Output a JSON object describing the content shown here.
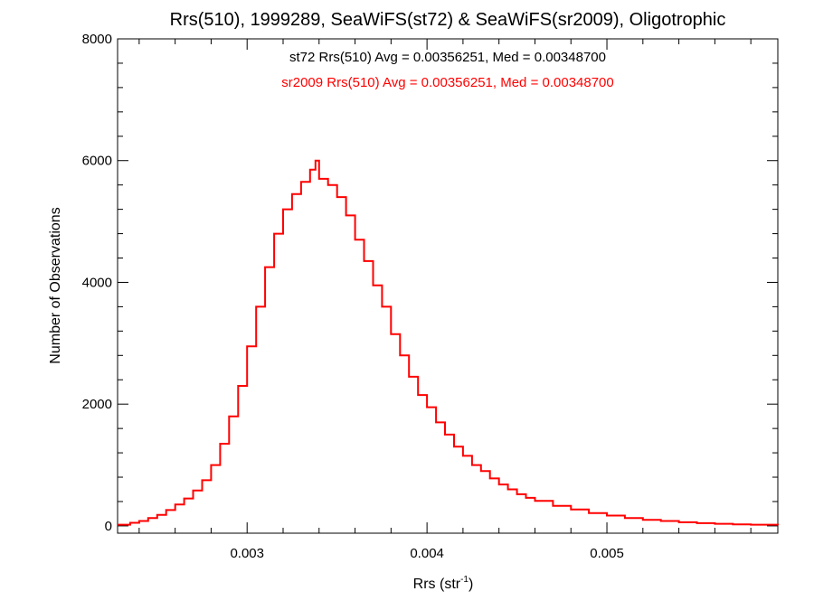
{
  "chart_data": {
    "type": "line",
    "title": "Rrs(510), 1999289, SeaWiFS(st72) & SeaWiFS(sr2009), Oligotrophic",
    "xlabel": "Rrs (str",
    "xlabel_sup": "-1",
    "xlabel_close": ")",
    "ylabel": "Number of Observations",
    "xlim": [
      0.00228,
      0.00595
    ],
    "ylim": [
      -120,
      8000
    ],
    "x_ticks": [
      0.003,
      0.004,
      0.005
    ],
    "x_tick_labels": [
      "0.003",
      "0.004",
      "0.005"
    ],
    "y_ticks": [
      0,
      2000,
      4000,
      6000,
      8000
    ],
    "y_tick_labels": [
      "0",
      "2000",
      "4000",
      "6000",
      "8000"
    ],
    "grid": false,
    "annotations": [
      {
        "text": "st72 Rrs(510) Avg = 0.00356251, Med = 0.00348700",
        "color": "#000000"
      },
      {
        "text": "sr2009 Rrs(510) Avg = 0.00356251, Med = 0.00348700",
        "color": "#ff0000"
      }
    ],
    "series": [
      {
        "color": "#ff0000",
        "x": [
          0.00228,
          0.00235,
          0.0024,
          0.00245,
          0.0025,
          0.00255,
          0.0026,
          0.00265,
          0.0027,
          0.00275,
          0.0028,
          0.00285,
          0.0029,
          0.00295,
          0.003,
          0.00305,
          0.0031,
          0.00315,
          0.0032,
          0.00325,
          0.0033,
          0.00335,
          0.00338,
          0.0034,
          0.00345,
          0.0035,
          0.00355,
          0.0036,
          0.00365,
          0.0037,
          0.00375,
          0.0038,
          0.00385,
          0.0039,
          0.00395,
          0.004,
          0.00405,
          0.0041,
          0.00415,
          0.0042,
          0.00425,
          0.0043,
          0.00435,
          0.0044,
          0.00445,
          0.0045,
          0.00455,
          0.0046,
          0.0047,
          0.0048,
          0.0049,
          0.005,
          0.0051,
          0.0052,
          0.0053,
          0.0054,
          0.0055,
          0.0056,
          0.0057,
          0.0058,
          0.00595
        ],
        "values": [
          20,
          50,
          80,
          130,
          180,
          260,
          350,
          450,
          580,
          750,
          1000,
          1350,
          1800,
          2300,
          2950,
          3600,
          4250,
          4800,
          5200,
          5450,
          5650,
          5850,
          6000,
          5700,
          5600,
          5400,
          5100,
          4700,
          4350,
          3950,
          3600,
          3150,
          2800,
          2450,
          2150,
          1950,
          1700,
          1500,
          1300,
          1150,
          1000,
          900,
          780,
          680,
          600,
          520,
          460,
          410,
          330,
          270,
          210,
          170,
          130,
          100,
          80,
          60,
          45,
          35,
          25,
          20,
          10
        ]
      }
    ]
  }
}
